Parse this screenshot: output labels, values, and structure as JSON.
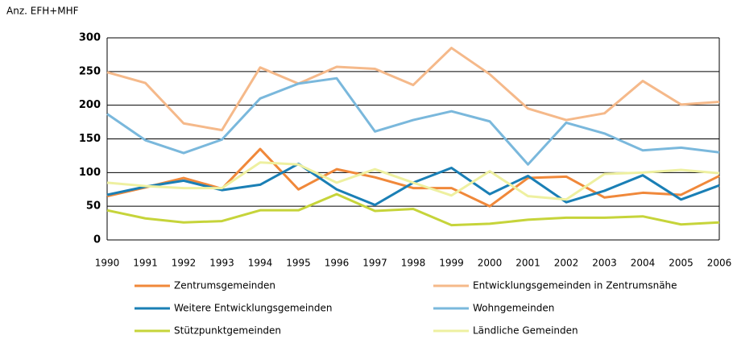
{
  "chart_data": {
    "type": "line",
    "y_axis_label": "Anz. EFH+MHF",
    "categories": [
      "1990",
      "1991",
      "1992",
      "1993",
      "1994",
      "1995",
      "1996",
      "1997",
      "1998",
      "1999",
      "2000",
      "2001",
      "2002",
      "2003",
      "2004",
      "2005",
      "2006"
    ],
    "ylim": [
      0,
      300
    ],
    "yticks": [
      0,
      50,
      100,
      150,
      200,
      250,
      300
    ],
    "grid": true,
    "series": [
      {
        "name": "Zentrumsgemeinden",
        "color": "#f0883a",
        "values": [
          65,
          78,
          92,
          76,
          135,
          75,
          105,
          93,
          77,
          77,
          50,
          92,
          94,
          63,
          70,
          67,
          95
        ]
      },
      {
        "name": "Entwicklungsgemeinden in Zentrumsnähe",
        "color": "#f5b98a",
        "values": [
          249,
          233,
          173,
          163,
          256,
          232,
          257,
          254,
          230,
          285,
          246,
          195,
          178,
          188,
          236,
          201,
          205
        ]
      },
      {
        "name": "Weitere Entwicklungsgemeinden",
        "color": "#1a7fb5",
        "values": [
          67,
          79,
          88,
          74,
          82,
          113,
          75,
          52,
          85,
          107,
          68,
          95,
          56,
          73,
          96,
          60,
          81
        ]
      },
      {
        "name": "Wohngemeinden",
        "color": "#7ab8dc",
        "values": [
          187,
          148,
          129,
          149,
          210,
          232,
          240,
          161,
          178,
          191,
          176,
          112,
          174,
          158,
          133,
          137,
          130
        ]
      },
      {
        "name": "Stützpunktgemeinden",
        "color": "#c6d43a",
        "values": [
          44,
          32,
          26,
          28,
          44,
          44,
          68,
          43,
          46,
          22,
          24,
          30,
          33,
          33,
          35,
          23,
          26
        ]
      },
      {
        "name": "Ländliche Gemeinden",
        "color": "#eef0a0",
        "values": [
          85,
          80,
          77,
          77,
          115,
          112,
          85,
          105,
          85,
          66,
          102,
          65,
          60,
          98,
          100,
          104,
          99
        ]
      }
    ]
  }
}
